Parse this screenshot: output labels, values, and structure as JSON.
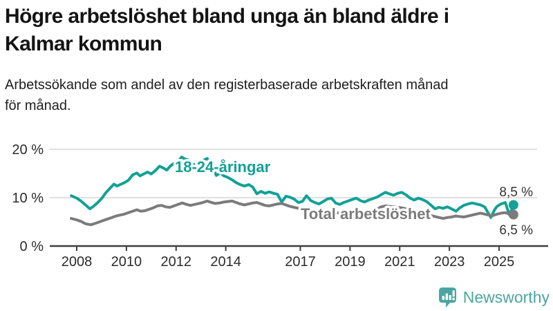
{
  "header": {
    "title_line1": "Högre arbetslöshet bland unga än bland äldre i",
    "title_line2": "Kalmar kommun",
    "subtitle_line1": "Arbetssökande som andel av den registerbaserade arbetskraften månad",
    "subtitle_line2": "för månad."
  },
  "chart_data": {
    "type": "line",
    "title": "Högre arbetslöshet bland unga än bland äldre i Kalmar kommun",
    "subtitle": "Arbetssökande som andel av den registerbaserade arbetskraften månad för månad.",
    "unit": "%",
    "grid": "horizontal",
    "legend": "inline-labels",
    "xlim": [
      2007.7,
      2026.3
    ],
    "ylim": [
      0,
      22
    ],
    "x_ticks": [
      {
        "label": "2008",
        "year": 2008
      },
      {
        "label": "2010",
        "year": 2010
      },
      {
        "label": "2012",
        "year": 2012
      },
      {
        "label": "2014",
        "year": 2014
      },
      {
        "label": "2017",
        "year": 2017
      },
      {
        "label": "2019",
        "year": 2019
      },
      {
        "label": "2021",
        "year": 2021
      },
      {
        "label": "2023",
        "year": 2023
      },
      {
        "label": "2025",
        "year": 2025
      }
    ],
    "y_ticks": [
      {
        "label": "0 %",
        "value": 0
      },
      {
        "label": "10 %",
        "value": 10
      },
      {
        "label": "20 %",
        "value": 20
      }
    ],
    "series": [
      {
        "name": "18-24-åringar",
        "color": "#12A195",
        "end_label": "8,5 %",
        "end_value": 8.5,
        "points": [
          [
            2007.78,
            10.4
          ],
          [
            2008.0,
            9.9
          ],
          [
            2008.17,
            9.3
          ],
          [
            2008.33,
            8.6
          ],
          [
            2008.53,
            7.7
          ],
          [
            2008.67,
            8.2
          ],
          [
            2008.83,
            8.9
          ],
          [
            2009.0,
            9.8
          ],
          [
            2009.17,
            11.0
          ],
          [
            2009.33,
            11.9
          ],
          [
            2009.5,
            12.8
          ],
          [
            2009.62,
            12.4
          ],
          [
            2009.75,
            12.7
          ],
          [
            2009.92,
            13.1
          ],
          [
            2010.08,
            13.6
          ],
          [
            2010.25,
            14.7
          ],
          [
            2010.42,
            15.1
          ],
          [
            2010.55,
            14.5
          ],
          [
            2010.7,
            14.9
          ],
          [
            2010.85,
            15.3
          ],
          [
            2011.0,
            14.9
          ],
          [
            2011.17,
            15.6
          ],
          [
            2011.33,
            16.5
          ],
          [
            2011.5,
            16.1
          ],
          [
            2011.62,
            15.7
          ],
          [
            2011.78,
            16.6
          ],
          [
            2011.92,
            17.1
          ],
          [
            2012.08,
            17.4
          ],
          [
            2012.22,
            18.4
          ],
          [
            2012.35,
            18.0
          ],
          [
            2012.5,
            17.8
          ],
          [
            2012.62,
            17.1
          ],
          [
            2012.78,
            16.7
          ],
          [
            2012.92,
            17.3
          ],
          [
            2013.08,
            17.7
          ],
          [
            2013.25,
            18.1
          ],
          [
            2013.38,
            17.2
          ],
          [
            2013.5,
            15.8
          ],
          [
            2013.62,
            14.6
          ],
          [
            2013.78,
            15.1
          ],
          [
            2013.92,
            14.5
          ],
          [
            2014.08,
            14.2
          ],
          [
            2014.25,
            13.7
          ],
          [
            2014.42,
            13.1
          ],
          [
            2014.58,
            12.7
          ],
          [
            2014.75,
            12.4
          ],
          [
            2014.92,
            12.7
          ],
          [
            2015.08,
            12.2
          ],
          [
            2015.25,
            10.8
          ],
          [
            2015.42,
            11.3
          ],
          [
            2015.58,
            10.9
          ],
          [
            2015.75,
            11.2
          ],
          [
            2015.92,
            10.9
          ],
          [
            2016.08,
            10.7
          ],
          [
            2016.25,
            9.1
          ],
          [
            2016.42,
            10.3
          ],
          [
            2016.58,
            10.1
          ],
          [
            2016.75,
            9.7
          ],
          [
            2016.92,
            9.0
          ],
          [
            2017.08,
            9.2
          ],
          [
            2017.25,
            10.4
          ],
          [
            2017.42,
            9.4
          ],
          [
            2017.58,
            9.0
          ],
          [
            2017.75,
            8.7
          ],
          [
            2017.92,
            9.2
          ],
          [
            2018.08,
            9.7
          ],
          [
            2018.25,
            9.9
          ],
          [
            2018.42,
            8.9
          ],
          [
            2018.58,
            8.6
          ],
          [
            2018.75,
            9.0
          ],
          [
            2018.92,
            9.3
          ],
          [
            2019.08,
            9.6
          ],
          [
            2019.25,
            9.9
          ],
          [
            2019.42,
            9.4
          ],
          [
            2019.58,
            9.1
          ],
          [
            2019.75,
            9.5
          ],
          [
            2019.92,
            9.8
          ],
          [
            2020.08,
            10.1
          ],
          [
            2020.25,
            10.6
          ],
          [
            2020.42,
            11.1
          ],
          [
            2020.58,
            10.8
          ],
          [
            2020.75,
            10.5
          ],
          [
            2020.92,
            10.9
          ],
          [
            2021.08,
            11.1
          ],
          [
            2021.25,
            10.6
          ],
          [
            2021.42,
            9.9
          ],
          [
            2021.58,
            9.5
          ],
          [
            2021.75,
            9.9
          ],
          [
            2021.92,
            9.6
          ],
          [
            2022.08,
            9.2
          ],
          [
            2022.25,
            8.5
          ],
          [
            2022.42,
            7.7
          ],
          [
            2022.58,
            8.0
          ],
          [
            2022.75,
            7.8
          ],
          [
            2022.92,
            8.1
          ],
          [
            2023.08,
            7.7
          ],
          [
            2023.27,
            7.2
          ],
          [
            2023.42,
            7.9
          ],
          [
            2023.58,
            8.4
          ],
          [
            2023.75,
            8.7
          ],
          [
            2023.92,
            8.9
          ],
          [
            2024.08,
            8.7
          ],
          [
            2024.25,
            8.5
          ],
          [
            2024.42,
            8.1
          ],
          [
            2024.67,
            5.9
          ],
          [
            2024.83,
            7.6
          ],
          [
            2024.92,
            8.2
          ],
          [
            2025.08,
            8.7
          ],
          [
            2025.25,
            9.0
          ],
          [
            2025.42,
            6.4
          ],
          [
            2025.58,
            8.5
          ]
        ]
      },
      {
        "name": "Total arbetslöshet",
        "color": "#7B7B7B",
        "end_label": "6,5 %",
        "end_value": 6.5,
        "points": [
          [
            2007.78,
            5.7
          ],
          [
            2008.0,
            5.4
          ],
          [
            2008.17,
            5.1
          ],
          [
            2008.35,
            4.6
          ],
          [
            2008.58,
            4.4
          ],
          [
            2008.75,
            4.7
          ],
          [
            2008.92,
            5.0
          ],
          [
            2009.08,
            5.3
          ],
          [
            2009.25,
            5.6
          ],
          [
            2009.42,
            5.9
          ],
          [
            2009.58,
            6.2
          ],
          [
            2009.75,
            6.4
          ],
          [
            2009.92,
            6.6
          ],
          [
            2010.08,
            6.9
          ],
          [
            2010.25,
            7.2
          ],
          [
            2010.42,
            7.5
          ],
          [
            2010.58,
            7.2
          ],
          [
            2010.75,
            7.3
          ],
          [
            2010.92,
            7.6
          ],
          [
            2011.08,
            7.9
          ],
          [
            2011.25,
            8.3
          ],
          [
            2011.42,
            8.4
          ],
          [
            2011.58,
            8.1
          ],
          [
            2011.75,
            8.0
          ],
          [
            2011.92,
            8.3
          ],
          [
            2012.08,
            8.6
          ],
          [
            2012.25,
            8.9
          ],
          [
            2012.42,
            8.6
          ],
          [
            2012.58,
            8.4
          ],
          [
            2012.75,
            8.6
          ],
          [
            2012.92,
            8.8
          ],
          [
            2013.08,
            9.0
          ],
          [
            2013.25,
            9.3
          ],
          [
            2013.42,
            9.0
          ],
          [
            2013.58,
            8.8
          ],
          [
            2013.75,
            8.9
          ],
          [
            2013.92,
            9.1
          ],
          [
            2014.08,
            9.2
          ],
          [
            2014.25,
            9.3
          ],
          [
            2014.42,
            9.0
          ],
          [
            2014.58,
            8.7
          ],
          [
            2014.75,
            8.5
          ],
          [
            2014.92,
            8.7
          ],
          [
            2015.08,
            8.9
          ],
          [
            2015.25,
            9.0
          ],
          [
            2015.42,
            8.7
          ],
          [
            2015.58,
            8.4
          ],
          [
            2015.75,
            8.3
          ],
          [
            2015.92,
            8.5
          ],
          [
            2016.08,
            8.7
          ],
          [
            2016.25,
            8.8
          ],
          [
            2016.42,
            8.5
          ],
          [
            2016.58,
            8.2
          ],
          [
            2016.75,
            8.0
          ],
          [
            2016.92,
            7.8
          ],
          [
            2017.08,
            7.7
          ],
          [
            2017.25,
            7.5
          ],
          [
            2017.42,
            7.3
          ],
          [
            2017.58,
            7.1
          ],
          [
            2017.75,
            7.0
          ],
          [
            2017.92,
            7.1
          ],
          [
            2018.08,
            7.2
          ],
          [
            2018.25,
            7.1
          ],
          [
            2018.42,
            6.9
          ],
          [
            2018.58,
            6.8
          ],
          [
            2018.75,
            6.9
          ],
          [
            2018.92,
            7.0
          ],
          [
            2019.08,
            7.1
          ],
          [
            2019.25,
            7.2
          ],
          [
            2019.42,
            7.1
          ],
          [
            2019.58,
            7.0
          ],
          [
            2019.75,
            7.1
          ],
          [
            2019.92,
            7.3
          ],
          [
            2020.08,
            7.6
          ],
          [
            2020.25,
            8.1
          ],
          [
            2020.42,
            8.3
          ],
          [
            2020.58,
            8.2
          ],
          [
            2020.75,
            8.1
          ],
          [
            2020.92,
            8.0
          ],
          [
            2021.08,
            7.9
          ],
          [
            2021.25,
            7.7
          ],
          [
            2021.42,
            7.4
          ],
          [
            2021.58,
            7.2
          ],
          [
            2021.75,
            7.0
          ],
          [
            2021.92,
            6.8
          ],
          [
            2022.08,
            6.6
          ],
          [
            2022.25,
            6.3
          ],
          [
            2022.42,
            6.1
          ],
          [
            2022.58,
            5.9
          ],
          [
            2022.75,
            5.7
          ],
          [
            2022.92,
            5.9
          ],
          [
            2023.08,
            6.0
          ],
          [
            2023.25,
            6.2
          ],
          [
            2023.42,
            6.1
          ],
          [
            2023.58,
            6.0
          ],
          [
            2023.75,
            6.2
          ],
          [
            2023.92,
            6.4
          ],
          [
            2024.08,
            6.6
          ],
          [
            2024.25,
            6.8
          ],
          [
            2024.42,
            6.6
          ],
          [
            2024.58,
            6.4
          ],
          [
            2024.75,
            6.3
          ],
          [
            2024.92,
            6.6
          ],
          [
            2025.08,
            6.8
          ],
          [
            2025.25,
            6.9
          ],
          [
            2025.42,
            6.6
          ],
          [
            2025.58,
            6.5
          ]
        ]
      }
    ]
  },
  "branding": {
    "logo_text": "Newsworthy",
    "logo_color": "#4BA6A1",
    "logo_icon": "newsworthy-speech-bubble-bar-chart-icon"
  }
}
